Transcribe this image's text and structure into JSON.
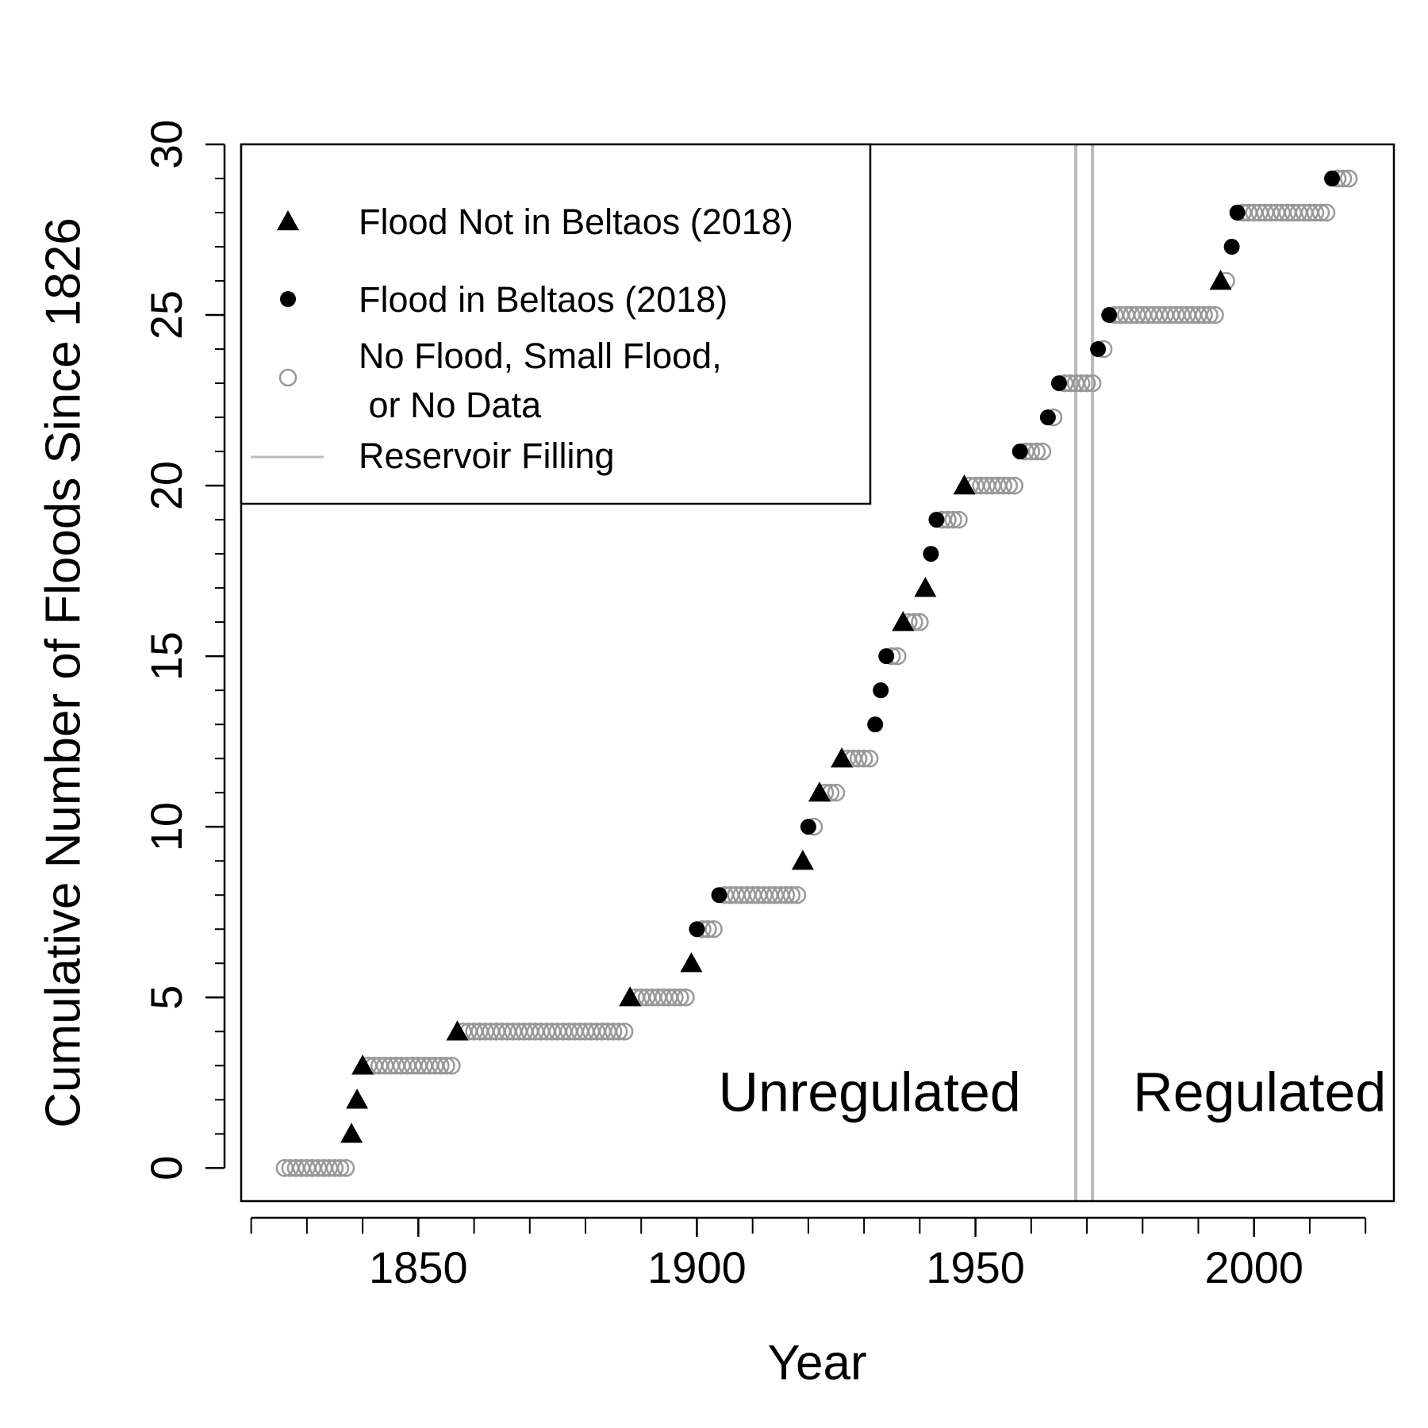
{
  "chart_data": {
    "type": "scatter",
    "xlabel": "Year",
    "ylabel": "Cumulative Number of Floods Since 1826",
    "xlim": [
      1818.2,
      2025.1
    ],
    "ylim": [
      -0.97,
      30
    ],
    "xticks": [
      1850,
      1900,
      1950,
      2000
    ],
    "xminor_ticks": [
      1820,
      1830,
      1840,
      1850,
      1860,
      1870,
      1880,
      1890,
      1900,
      1910,
      1920,
      1930,
      1940,
      1950,
      1960,
      1970,
      1980,
      1990,
      2000,
      2010,
      2020
    ],
    "yticks": [
      0,
      5,
      10,
      15,
      20,
      25,
      30
    ],
    "yminor_ticks": [
      0,
      1,
      2,
      3,
      4,
      5,
      6,
      7,
      8,
      9,
      10,
      11,
      12,
      13,
      14,
      15,
      16,
      17,
      18,
      19,
      20,
      21,
      22,
      23,
      24,
      25,
      26,
      27,
      28,
      29,
      30
    ],
    "series": [
      {
        "name": "Flood Not in Beltaos (2018)",
        "marker": "triangle",
        "color": "#000000",
        "x": [
          1838,
          1839,
          1840,
          1857,
          1888,
          1899,
          1919,
          1922,
          1926,
          1937,
          1941,
          1948,
          1994
        ],
        "values": [
          1,
          2,
          3,
          4,
          5,
          6,
          9,
          11,
          12,
          16,
          17,
          20,
          26
        ]
      },
      {
        "name": "Flood in Beltaos (2018)",
        "marker": "filled-circle",
        "color": "#000000",
        "x": [
          1900,
          1904,
          1920,
          1932,
          1933,
          1934,
          1942,
          1943,
          1958,
          1963,
          1965,
          1972,
          1974,
          1996,
          1997,
          2014
        ],
        "values": [
          7,
          8,
          10,
          13,
          14,
          15,
          18,
          19,
          21,
          22,
          23,
          24,
          25,
          27,
          28,
          29
        ]
      },
      {
        "name": "No Flood, Small Flood,\n or No Data",
        "marker": "open-circle",
        "color": "#999999",
        "x": [
          1826,
          1827,
          1828,
          1829,
          1830,
          1831,
          1832,
          1833,
          1834,
          1835,
          1836,
          1837,
          1841,
          1842,
          1843,
          1844,
          1845,
          1846,
          1847,
          1848,
          1849,
          1850,
          1851,
          1852,
          1853,
          1854,
          1855,
          1856,
          1858,
          1859,
          1860,
          1861,
          1862,
          1863,
          1864,
          1865,
          1866,
          1867,
          1868,
          1869,
          1870,
          1871,
          1872,
          1873,
          1874,
          1875,
          1876,
          1877,
          1878,
          1879,
          1880,
          1881,
          1882,
          1883,
          1884,
          1885,
          1886,
          1887,
          1889,
          1890,
          1891,
          1892,
          1893,
          1894,
          1895,
          1896,
          1897,
          1898,
          1901,
          1902,
          1903,
          1905,
          1906,
          1907,
          1908,
          1909,
          1910,
          1911,
          1912,
          1913,
          1914,
          1915,
          1916,
          1917,
          1918,
          1921,
          1923,
          1924,
          1925,
          1927,
          1928,
          1929,
          1930,
          1931,
          1935,
          1936,
          1938,
          1939,
          1940,
          1944,
          1945,
          1946,
          1947,
          1949,
          1950,
          1951,
          1952,
          1953,
          1954,
          1955,
          1956,
          1957,
          1959,
          1960,
          1961,
          1962,
          1964,
          1966,
          1967,
          1968,
          1969,
          1970,
          1971,
          1973,
          1975,
          1976,
          1977,
          1978,
          1979,
          1980,
          1981,
          1982,
          1983,
          1984,
          1985,
          1986,
          1987,
          1988,
          1989,
          1990,
          1991,
          1992,
          1993,
          1995,
          1998,
          1999,
          2000,
          2001,
          2002,
          2003,
          2004,
          2005,
          2006,
          2007,
          2008,
          2009,
          2010,
          2011,
          2012,
          2013,
          2015,
          2016,
          2017
        ],
        "values": [
          0,
          0,
          0,
          0,
          0,
          0,
          0,
          0,
          0,
          0,
          0,
          0,
          3,
          3,
          3,
          3,
          3,
          3,
          3,
          3,
          3,
          3,
          3,
          3,
          3,
          3,
          3,
          3,
          4,
          4,
          4,
          4,
          4,
          4,
          4,
          4,
          4,
          4,
          4,
          4,
          4,
          4,
          4,
          4,
          4,
          4,
          4,
          4,
          4,
          4,
          4,
          4,
          4,
          4,
          4,
          4,
          4,
          4,
          5,
          5,
          5,
          5,
          5,
          5,
          5,
          5,
          5,
          5,
          7,
          7,
          7,
          8,
          8,
          8,
          8,
          8,
          8,
          8,
          8,
          8,
          8,
          8,
          8,
          8,
          8,
          10,
          11,
          11,
          11,
          12,
          12,
          12,
          12,
          12,
          15,
          15,
          16,
          16,
          16,
          19,
          19,
          19,
          19,
          20,
          20,
          20,
          20,
          20,
          20,
          20,
          20,
          20,
          21,
          21,
          21,
          21,
          22,
          23,
          23,
          23,
          23,
          23,
          23,
          24,
          25,
          25,
          25,
          25,
          25,
          25,
          25,
          25,
          25,
          25,
          25,
          25,
          25,
          25,
          25,
          25,
          25,
          25,
          25,
          26,
          28,
          28,
          28,
          28,
          28,
          28,
          28,
          28,
          28,
          28,
          28,
          28,
          28,
          28,
          28,
          28,
          29,
          29,
          29
        ]
      }
    ],
    "reservoir_filling": {
      "name": "Reservoir Filling",
      "x": [
        1968,
        1971
      ],
      "color": "#bbbbbb"
    },
    "annotations": [
      {
        "text": "Unregulated",
        "x": 1931,
        "y": 2.1
      },
      {
        "text": "Regulated",
        "x": 2001,
        "y": 2.1
      }
    ]
  }
}
